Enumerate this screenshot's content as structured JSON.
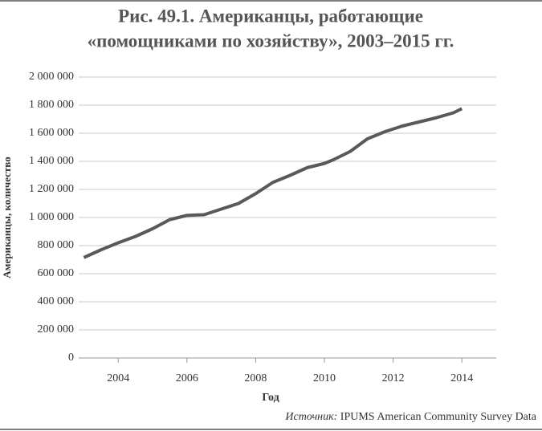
{
  "chart_data": {
    "type": "line",
    "title": [
      "Рис. 49.1. Американцы, работающие",
      "«помощниками по хозяйству», 2003–2015 гг."
    ],
    "y_label": "Американцы, количество",
    "x_label": "Год",
    "source": [
      "Источник:",
      "IPUMS American Community Survey Data"
    ],
    "x": [
      2003.0,
      2003.5,
      2004.0,
      2004.5,
      2005.0,
      2005.5,
      2005.75,
      2006.0,
      2006.5,
      2007.0,
      2007.5,
      2008.0,
      2008.5,
      2009.0,
      2009.5,
      2010.0,
      2010.25,
      2010.75,
      2011.25,
      2011.75,
      2012.25,
      2012.75,
      2013.25,
      2013.75,
      2014.0
    ],
    "series": [
      {
        "color": "#595959",
        "values": [
          715000,
          770000,
          820000,
          865000,
          920000,
          985000,
          1000000,
          1015000,
          1020000,
          1060000,
          1100000,
          1170000,
          1250000,
          1300000,
          1355000,
          1385000,
          1410000,
          1470000,
          1560000,
          1610000,
          1650000,
          1680000,
          1710000,
          1745000,
          1775000
        ]
      }
    ],
    "xlim": [
      2002.85,
      2015.0
    ],
    "xticks": [
      2004,
      2006,
      2008,
      2010,
      2012,
      2014
    ],
    "ylim": [
      0,
      2000000
    ],
    "yticks": [
      0,
      {
        "value": 200000,
        "label": "200 000"
      },
      {
        "value": 400000,
        "label": "400 000"
      },
      {
        "value": 600000,
        "label": "600 000"
      },
      {
        "value": 800000,
        "label": "800 000"
      },
      {
        "value": 1000000,
        "label": "1 000 000"
      },
      {
        "value": 1200000,
        "label": "1 200 000"
      },
      {
        "value": 1400000,
        "label": "1 400 000"
      },
      {
        "value": 1600000,
        "label": "1 600 000"
      },
      {
        "value": 1800000,
        "label": "1 800 000"
      },
      {
        "value": 2000000,
        "label": "2 000 000"
      }
    ],
    "grid": true
  }
}
